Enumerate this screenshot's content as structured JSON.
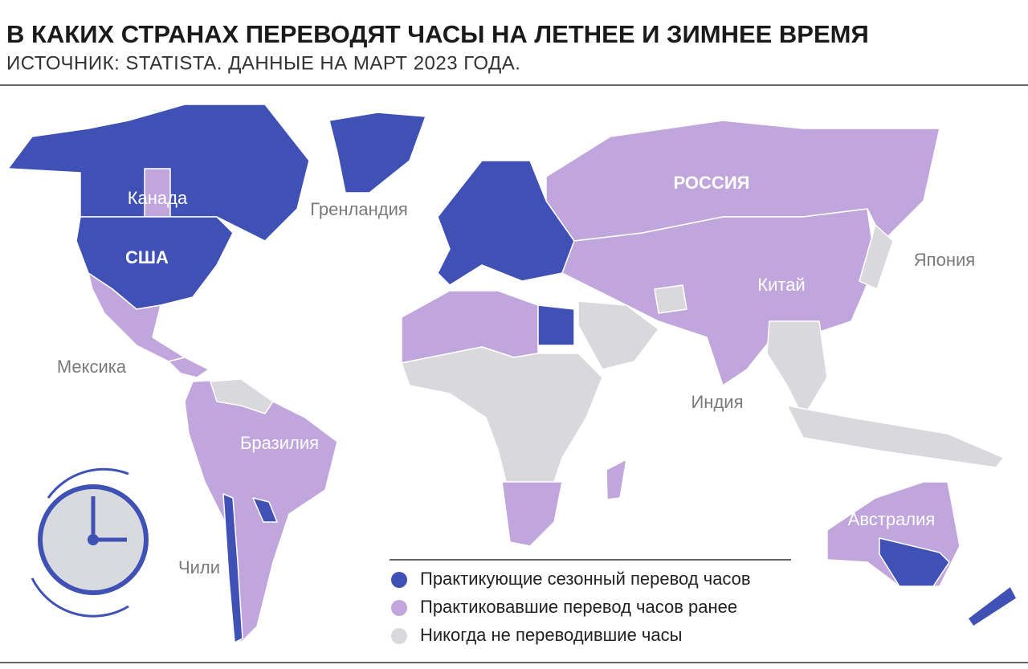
{
  "header": {
    "title": "В КАКИХ СТРАНАХ ПЕРЕВОДЯТ ЧАСЫ НА ЛЕТНЕЕ И ЗИМНЕЕ ВРЕМЯ",
    "subtitle": "ИСТОЧНИК: STATISTA. ДАННЫЕ НА МАРТ 2023 ГОДА."
  },
  "map": {
    "labels": [
      "Канада",
      "США",
      "Гренландия",
      "РОССИЯ",
      "Япония",
      "Китай",
      "Мексика",
      "Индия",
      "Бразилия",
      "Австралия",
      "Чили"
    ]
  },
  "legend": {
    "items": [
      {
        "label": "Практикующие сезонный перевод часов",
        "color": "#3f51b5"
      },
      {
        "label": "Практиковавшие перевод часов ранее",
        "color": "#c0a6dc"
      },
      {
        "label": "Никогда не переводившие часы",
        "color": "#d9d9dd"
      }
    ]
  }
}
